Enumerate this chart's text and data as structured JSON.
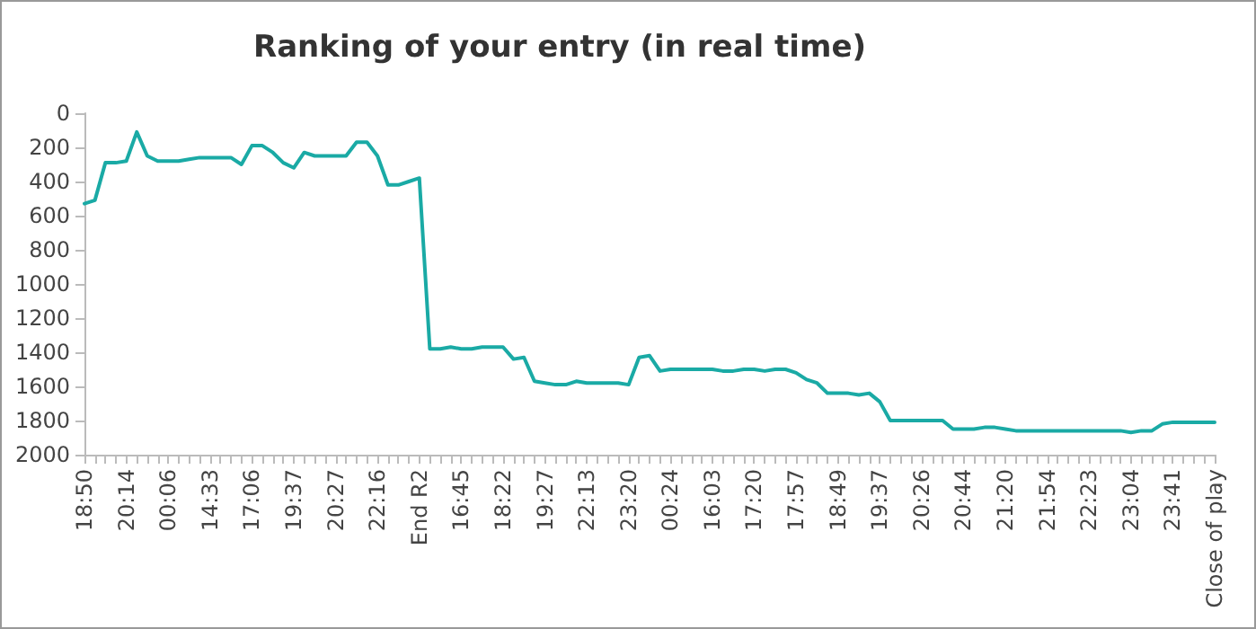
{
  "chart_data": {
    "type": "line",
    "title": "Ranking of your entry (in real time)",
    "categories": [
      "18:50",
      null,
      null,
      null,
      "20:14",
      null,
      null,
      null,
      "00:06",
      null,
      null,
      null,
      "14:33",
      null,
      null,
      null,
      "17:06",
      null,
      null,
      null,
      "19:37",
      null,
      null,
      null,
      "20:27",
      null,
      null,
      null,
      "22:16",
      null,
      null,
      null,
      "End R2",
      null,
      null,
      null,
      "16:45",
      null,
      null,
      null,
      "18:22",
      null,
      null,
      null,
      "19:27",
      null,
      null,
      null,
      "22:13",
      null,
      null,
      null,
      "23:20",
      null,
      null,
      null,
      "00:24",
      null,
      null,
      null,
      "16:03",
      null,
      null,
      null,
      "17:20",
      null,
      null,
      null,
      "17:57",
      null,
      null,
      null,
      "18:49",
      null,
      null,
      null,
      "19:37",
      null,
      null,
      null,
      "20:26",
      null,
      null,
      null,
      "20:44",
      null,
      null,
      null,
      "21:20",
      null,
      null,
      null,
      "21:54",
      null,
      null,
      null,
      "22:23",
      null,
      null,
      null,
      "23:04",
      null,
      null,
      null,
      "23:41",
      null,
      null,
      null,
      "Close of play"
    ],
    "series": [
      {
        "color": "#1aaaa5",
        "values": [
          530,
          510,
          290,
          290,
          280,
          110,
          250,
          280,
          280,
          280,
          270,
          260,
          260,
          260,
          260,
          300,
          190,
          190,
          230,
          290,
          320,
          230,
          250,
          250,
          250,
          250,
          170,
          170,
          250,
          420,
          420,
          400,
          380,
          1380,
          1380,
          1370,
          1380,
          1380,
          1370,
          1370,
          1370,
          1440,
          1430,
          1570,
          1580,
          1590,
          1590,
          1570,
          1580,
          1580,
          1580,
          1580,
          1590,
          1430,
          1420,
          1510,
          1500,
          1500,
          1500,
          1500,
          1500,
          1510,
          1510,
          1500,
          1500,
          1510,
          1500,
          1500,
          1520,
          1560,
          1580,
          1640,
          1640,
          1640,
          1650,
          1640,
          1690,
          1800,
          1800,
          1800,
          1800,
          1800,
          1800,
          1850,
          1850,
          1850,
          1840,
          1840,
          1850,
          1860,
          1860,
          1860,
          1860,
          1860,
          1860,
          1860,
          1860,
          1860,
          1860,
          1860,
          1870,
          1860,
          1860,
          1820,
          1810,
          1810,
          1810,
          1810,
          1810
        ]
      }
    ],
    "ylim": [
      2000,
      0
    ],
    "yticks": [
      0,
      200,
      400,
      600,
      800,
      1000,
      1200,
      1400,
      1600,
      1800,
      2000
    ],
    "grid": false,
    "marker": "none",
    "line_style": "solid"
  }
}
